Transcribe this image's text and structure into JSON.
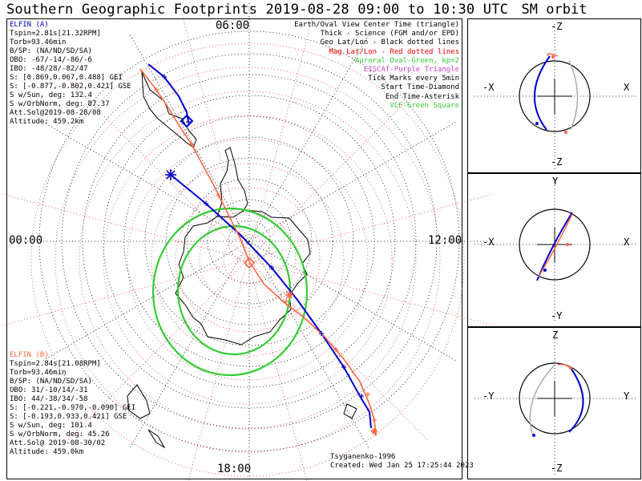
{
  "header": {
    "title": "Southern Geographic Footprints 2019-08-28 09:00 to 10:30 UTC",
    "sm_title": "SM orbit"
  },
  "colors": {
    "elfin_a": "#0000cc",
    "elfin_b": "#ff6644",
    "aurora": "#33cc33",
    "mag_grid": "#ee3333",
    "geo_grid": "#000000",
    "eiscat": "#cc44cc",
    "orbit_gray": "#aaaaaa"
  },
  "elfin_a": {
    "title": "ELFIN (A)",
    "lines": [
      "Tspin=2.81s[21.32RPM]",
      "Torb=93.46min",
      "B/SP: (NA/ND/SD/SA)",
      "OBO: -67/-14/-86/-6",
      "IBO: -48/28/-82/47",
      "S: [0.869,0.067,0.488] GEI",
      "S: [-0.877,-0.802,0.421] GSE",
      "S w/Sun, deg: 132.4",
      "S w/OrbNorm, deg: 87.37",
      "Att.Sol@2019-08-28/08",
      "Altitude: 459.2km"
    ]
  },
  "elfin_b": {
    "title": "ELFIN (B)",
    "lines": [
      "Tspin=2.84s[21.08RPM]",
      "Torb=93.46min",
      "B/SP: (NA/ND/SD/SA)",
      "OBO: 31/-10/14/-31",
      "IBO: 44/-38/34/-58",
      "S: [-0.221,-0.970,-0.090] GEI",
      "S: [-0.193,0.933,0.421] GSE",
      "S w/Sun, deg: 101.4",
      "S w/OrbNorm, deg: 45.26",
      "Att.Sol@ 2019-08-30/02",
      "Altitude: 459.0km"
    ]
  },
  "legend": [
    {
      "text": "Earth/Oval View Center Time (triangle)",
      "color": "#000000"
    },
    {
      "text": "Thick - Science (FGM and/or EPD)",
      "color": "#000000"
    },
    {
      "text": "Geo Lat/Lon - Black dotted lines",
      "color": "#000000"
    },
    {
      "text": "Mag Lat/Lon - Red dotted lines",
      "color": "#ee0000"
    },
    {
      "text": "Auroral Oval-Green, kp=2",
      "color": "#33cc33"
    },
    {
      "text": "EISCAT-Purple Triangle",
      "color": "#cc44cc"
    },
    {
      "text": "Tick Marks every 5min",
      "color": "#000000"
    },
    {
      "text": "Start Time-Diamond",
      "color": "#000000"
    },
    {
      "text": "End Time-Asterisk",
      "color": "#000000"
    },
    {
      "text": "VLF-Green Square",
      "color": "#33cc33"
    }
  ],
  "footer": {
    "model": "Tsyganenko-1996",
    "created": "Created: Wed Jan 25 17:25:44 2023"
  },
  "hour_labels": {
    "top": "06:00",
    "left": "00:00",
    "right": "12:00",
    "bottom": "18:00"
  },
  "sm_panels": [
    {
      "top": "-Z",
      "bottom": "-Z",
      "left": "-X",
      "right": "X"
    },
    {
      "top": "Y",
      "bottom": "-Y",
      "left": "-X",
      "right": "X"
    },
    {
      "top": "Z",
      "bottom": "-Z",
      "left": "-Y",
      "right": "Y"
    }
  ],
  "chart_data": [
    {
      "type": "scatter",
      "title": "Southern Geographic Footprints 2019-08-28 09:00 to 10:30 UTC",
      "series": [
        {
          "name": "ELFIN (A)"
        },
        {
          "name": "ELFIN (B)"
        }
      ],
      "annotations": [
        "Tsyganenko-1996",
        "Tick Marks every 5min"
      ]
    },
    {
      "type": "scatter",
      "title": "SM orbit"
    },
    {
      "type": "scatter",
      "title": "SM orbit"
    },
    {
      "type": "scatter",
      "title": "SM orbit"
    }
  ]
}
